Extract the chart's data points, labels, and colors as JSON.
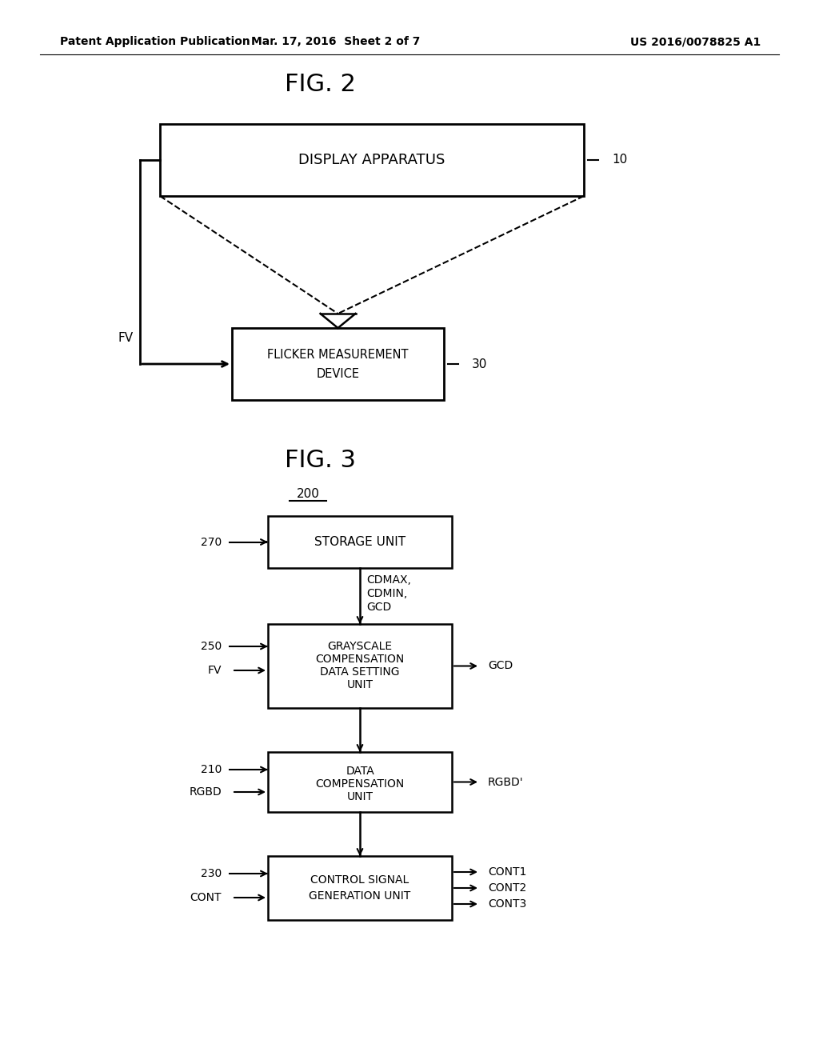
{
  "background_color": "#ffffff",
  "header_left": "Patent Application Publication",
  "header_mid": "Mar. 17, 2016  Sheet 2 of 7",
  "header_right": "US 2016/0078825 A1",
  "fig2_title": "FIG. 2",
  "fig3_title": "FIG. 3",
  "label_200": "200"
}
